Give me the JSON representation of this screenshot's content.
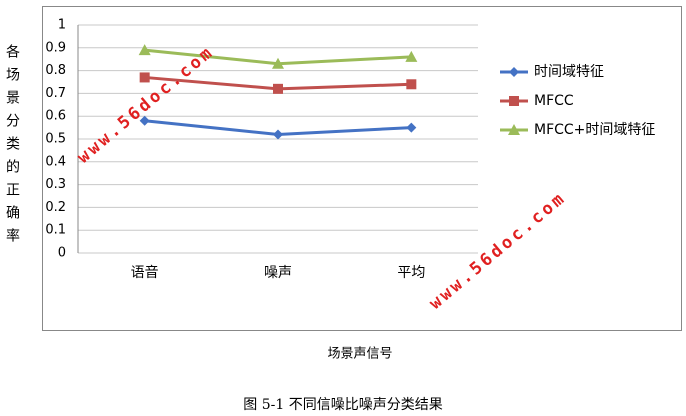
{
  "chart_data": {
    "type": "line",
    "y_label": "各场景分类的正确率",
    "x_label": "场景声信号",
    "caption": "图 5-1  不同信噪比噪声分类结果",
    "watermark": "www.56doc.com",
    "categories": [
      "语音",
      "噪声",
      "平均"
    ],
    "series": [
      {
        "name": "时间域特征",
        "color": "#4472c4",
        "marker": "diamond",
        "values": [
          0.58,
          0.52,
          0.55
        ]
      },
      {
        "name": "MFCC",
        "color": "#c0504d",
        "marker": "square",
        "values": [
          0.77,
          0.72,
          0.74
        ]
      },
      {
        "name": "MFCC+时间域特征",
        "color": "#9bbb59",
        "marker": "triangle",
        "values": [
          0.89,
          0.83,
          0.86
        ]
      }
    ],
    "ylim": [
      0,
      1
    ],
    "yticks": [
      0,
      0.1,
      0.2,
      0.3,
      0.4,
      0.5,
      0.6,
      0.7,
      0.8,
      0.9,
      1
    ],
    "grid": true,
    "legend": "right"
  }
}
